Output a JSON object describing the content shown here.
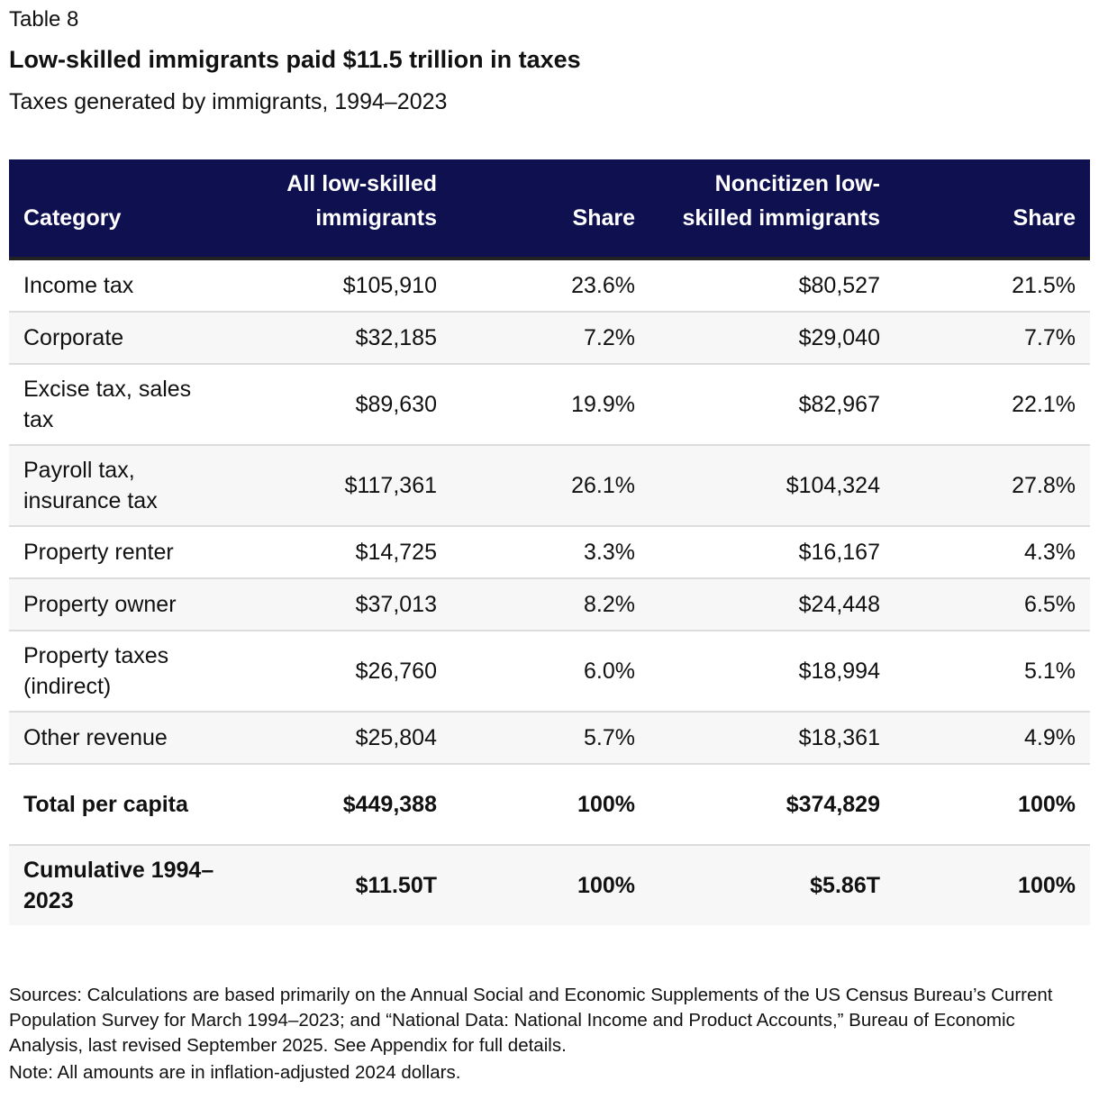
{
  "table_number": "Table 8",
  "title": "Low-skilled immigrants paid $11.5 trillion in taxes",
  "subtitle": "Taxes generated by immigrants, 1994–2023",
  "colors": {
    "header_bg": "#0f1050",
    "header_text": "#ffffff",
    "row_alt": "#f7f7f7"
  },
  "chart_data": {
    "type": "table",
    "columns": [
      "Category",
      "All low-skilled immigrants",
      "Share",
      "Noncitizen low-skilled immigrants",
      "Share"
    ],
    "rows": [
      [
        "Income tax",
        "$105,910",
        "23.6%",
        "$80,527",
        "21.5%"
      ],
      [
        "Corporate",
        "$32,185",
        "7.2%",
        "$29,040",
        "7.7%"
      ],
      [
        "Excise tax, sales tax",
        "$89,630",
        "19.9%",
        "$82,967",
        "22.1%"
      ],
      [
        "Payroll tax, insurance tax",
        "$117,361",
        "26.1%",
        "$104,324",
        "27.8%"
      ],
      [
        "Property renter",
        "$14,725",
        "3.3%",
        "$16,167",
        "4.3%"
      ],
      [
        "Property owner",
        "$37,013",
        "8.2%",
        "$24,448",
        "6.5%"
      ],
      [
        "Property taxes (indirect)",
        "$26,760",
        "6.0%",
        "$18,994",
        "5.1%"
      ],
      [
        "Other revenue",
        "$25,804",
        "5.7%",
        "$18,361",
        "4.9%"
      ],
      [
        "Total per capita",
        "$449,388",
        "100%",
        "$374,829",
        "100%"
      ],
      [
        "Cumulative 1994–2023",
        "$11.50T",
        "100%",
        "$5.86T",
        "100%"
      ]
    ]
  },
  "sources": "Sources: Calculations are based primarily on the Annual Social and Economic Supplements of the US Census Bureau’s Current Population Survey for March 1994–2023; and “National Data: National Income and Product Accounts,” Bureau of Economic Analysis, last revised September 2025. See Appendix for full details.",
  "note": "Note: All amounts are in inflation-adjusted 2024 dollars."
}
